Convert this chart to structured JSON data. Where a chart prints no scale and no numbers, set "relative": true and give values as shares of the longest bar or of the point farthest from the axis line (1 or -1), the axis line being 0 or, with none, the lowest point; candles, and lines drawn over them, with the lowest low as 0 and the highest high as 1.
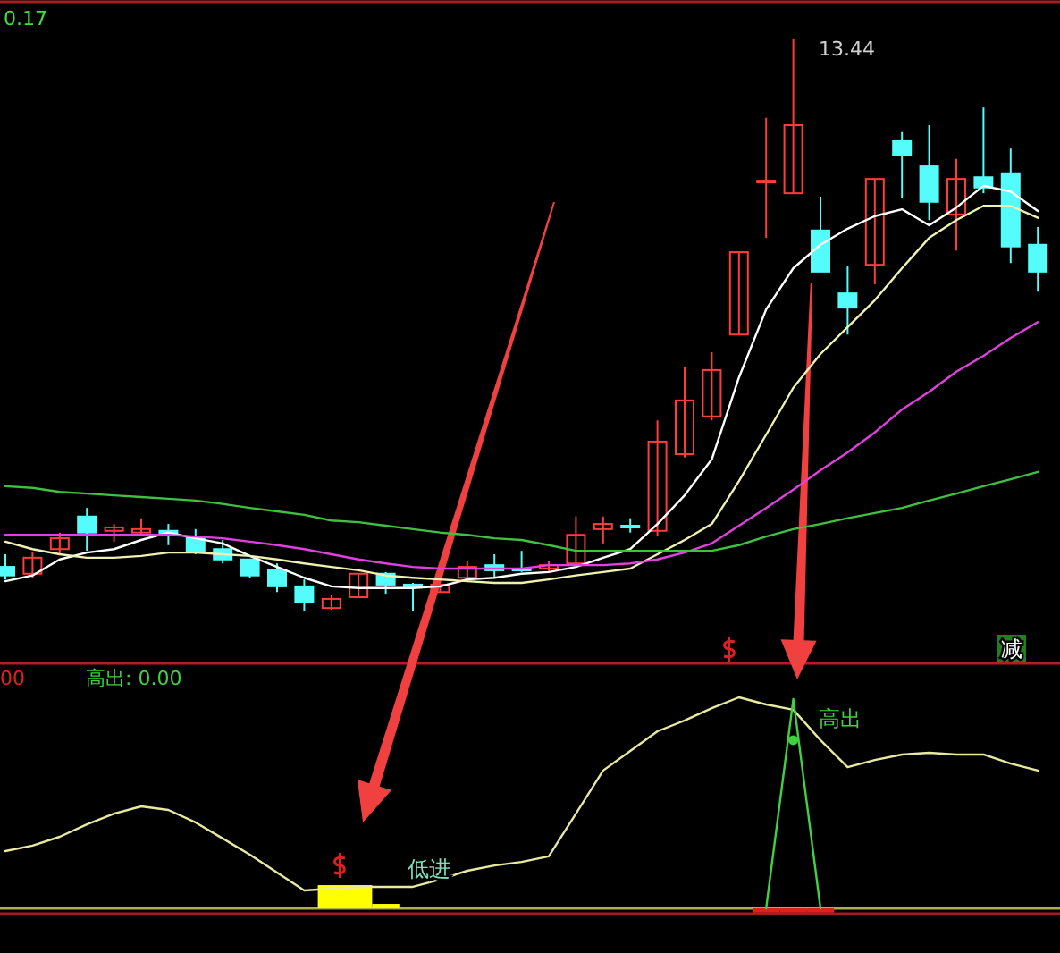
{
  "chart_data": [
    {
      "type": "candlestick",
      "relative": true,
      "categories": [
        null,
        null,
        null,
        null,
        null,
        null,
        null,
        null,
        null,
        null,
        null,
        null,
        null,
        null,
        null,
        null,
        null,
        null,
        null,
        null,
        null,
        null,
        null,
        null,
        null,
        null,
        null,
        null,
        null,
        null,
        null,
        null,
        null,
        null,
        null,
        null,
        null,
        null,
        null
      ],
      "ohlc": [
        [
          0.078,
          0.1,
          0.056,
          0.063
        ],
        [
          0.066,
          0.103,
          0.059,
          0.094
        ],
        [
          0.109,
          0.138,
          0.1,
          0.128
        ],
        [
          0.166,
          0.181,
          0.106,
          0.138
        ],
        [
          0.141,
          0.153,
          0.122,
          0.147
        ],
        [
          0.138,
          0.163,
          0.134,
          0.144
        ],
        [
          0.141,
          0.153,
          0.116,
          0.134
        ],
        [
          0.131,
          0.144,
          0.1,
          0.106
        ],
        [
          0.109,
          0.125,
          0.084,
          0.091
        ],
        [
          0.091,
          0.091,
          0.059,
          0.063
        ],
        [
          0.072,
          0.084,
          0.034,
          0.044
        ],
        [
          0.044,
          0.056,
          0,
          0.016
        ],
        [
          0.006,
          0.028,
          0.003,
          0.022
        ],
        [
          0.025,
          0.066,
          0.025,
          0.066
        ],
        [
          0.066,
          0.069,
          0.031,
          0.047
        ],
        [
          0.047,
          0.05,
          0,
          0.044
        ],
        [
          0.034,
          0.047,
          0.034,
          0.047
        ],
        [
          0.059,
          0.088,
          0.059,
          0.078
        ],
        [
          0.081,
          0.1,
          0.059,
          0.072
        ],
        [
          0.075,
          0.106,
          0.069,
          0.072
        ],
        [
          0.075,
          0.088,
          0.069,
          0.081
        ],
        [
          0.084,
          0.166,
          0.078,
          0.134
        ],
        [
          0.144,
          0.166,
          0.119,
          0.153
        ],
        [
          0.15,
          0.163,
          0.138,
          0.147
        ],
        [
          0.141,
          0.334,
          0.131,
          0.297
        ],
        [
          0.275,
          0.428,
          0.269,
          0.369
        ],
        [
          0.341,
          0.453,
          0.334,
          0.422
        ],
        [
          0.484,
          0.628,
          0.484,
          0.628
        ],
        [
          0.75,
          0.863,
          0.653,
          0.753
        ],
        [
          0.731,
          1,
          0.731,
          0.85
        ],
        [
          0.666,
          0.725,
          0.594,
          0.594
        ],
        [
          0.556,
          0.603,
          0.484,
          0.531
        ],
        [
          0.606,
          0.756,
          0.572,
          0.756
        ],
        [
          0.822,
          0.838,
          0.722,
          0.797
        ],
        [
          0.778,
          0.85,
          0.684,
          0.716
        ],
        [
          0.694,
          0.791,
          0.631,
          0.756
        ],
        [
          0.759,
          0.881,
          0.731,
          0.741
        ],
        [
          0.766,
          0.809,
          0.609,
          0.638
        ],
        [
          0.641,
          0.672,
          0.559,
          0.594
        ]
      ],
      "colors": [
        "#54fcfc",
        "#ff3c3c",
        "#ff3c3c",
        "#54fcfc",
        "#ff3c3c",
        "#ff3c3c",
        "#54fcfc",
        "#54fcfc",
        "#54fcfc",
        "#54fcfc",
        "#54fcfc",
        "#54fcfc",
        "#ff3c3c",
        "#ff3c3c",
        "#54fcfc",
        "#54fcfc",
        "#ff3c3c",
        "#ff3c3c",
        "#54fcfc",
        "#54fcfc",
        "#ff3c3c",
        "#ff3c3c",
        "#ff3c3c",
        "#54fcfc",
        "#ff3c3c",
        "#ff3c3c",
        "#ff3c3c",
        "#ff3c3c",
        "#ff3c3c",
        "#ff3c3c",
        "#54fcfc",
        "#54fcfc",
        "#ff3c3c",
        "#54fcfc",
        "#54fcfc",
        "#ff3c3c",
        "#54fcfc",
        "#54fcfc",
        "#54fcfc"
      ],
      "series": [
        {
          "type": "line",
          "color": "#ffffff",
          "values": [
            0.053,
            0.063,
            0.091,
            0.103,
            0.109,
            0.125,
            0.138,
            0.128,
            0.119,
            0.097,
            0.078,
            0.059,
            0.044,
            0.041,
            0.041,
            0.041,
            0.044,
            0.056,
            0.059,
            0.066,
            0.069,
            0.078,
            0.094,
            0.109,
            0.153,
            0.203,
            0.266,
            0.409,
            0.528,
            0.6,
            0.641,
            0.669,
            0.691,
            0.703,
            0.675,
            0.706,
            0.744,
            0.734,
            0.7
          ]
        },
        {
          "type": "line",
          "color": "#f0f0b0",
          "values": [
            0.122,
            0.109,
            0.1,
            0.094,
            0.094,
            0.097,
            0.103,
            0.103,
            0.1,
            0.097,
            0.091,
            0.084,
            0.078,
            0.072,
            0.063,
            0.059,
            0.056,
            0.053,
            0.05,
            0.05,
            0.056,
            0.063,
            0.069,
            0.075,
            0.1,
            0.125,
            0.153,
            0.228,
            0.309,
            0.391,
            0.45,
            0.497,
            0.544,
            0.6,
            0.653,
            0.684,
            0.709,
            0.709,
            0.688
          ]
        },
        {
          "type": "line",
          "color": "#e040e0",
          "values": [
            0.134,
            0.134,
            0.134,
            0.134,
            0.134,
            0.134,
            0.134,
            0.131,
            0.128,
            0.122,
            0.116,
            0.109,
            0.1,
            0.091,
            0.084,
            0.078,
            0.075,
            0.075,
            0.075,
            0.075,
            0.081,
            0.081,
            0.081,
            0.084,
            0.091,
            0.103,
            0.119,
            0.15,
            0.181,
            0.213,
            0.247,
            0.278,
            0.313,
            0.353,
            0.384,
            0.419,
            0.447,
            0.478,
            0.506
          ]
        },
        {
          "type": "line",
          "color": "#40c040",
          "values": [
            0.219,
            0.216,
            0.209,
            0.206,
            0.203,
            0.2,
            0.197,
            0.194,
            0.188,
            0.181,
            0.175,
            0.169,
            0.159,
            0.156,
            0.15,
            0.144,
            0.138,
            0.134,
            0.128,
            0.125,
            0.116,
            0.106,
            0.106,
            0.106,
            0.106,
            0.106,
            0.106,
            0.116,
            0.131,
            0.144,
            0.153,
            0.163,
            0.172,
            0.181,
            0.194,
            0.206,
            0.219,
            0.231,
            0.244
          ]
        }
      ],
      "annotations": [
        "0.17",
        "13.44",
        "减"
      ]
    },
    {
      "type": "line",
      "relative": true,
      "categories": [
        null,
        null,
        null,
        null,
        null,
        null,
        null,
        null,
        null,
        null,
        null,
        null,
        null,
        null,
        null,
        null,
        null,
        null,
        null,
        null,
        null,
        null,
        null,
        null,
        null,
        null,
        null,
        null,
        null,
        null,
        null,
        null,
        null,
        null,
        null,
        null,
        null,
        null,
        null
      ],
      "series": [
        {
          "type": "line",
          "color": "#e8e8a0",
          "values": [
            0.271,
            0.297,
            0.339,
            0.398,
            0.449,
            0.483,
            0.466,
            0.407,
            0.331,
            0.254,
            0.169,
            0.085,
            0.093,
            0.102,
            0.102,
            0.102,
            0.136,
            0.178,
            0.203,
            0.22,
            0.246,
            0.449,
            0.653,
            0.746,
            0.839,
            0.89,
            0.949,
            1,
            0.966,
            0.941,
            0.797,
            0.669,
            0.703,
            0.729,
            0.737,
            0.729,
            0.729,
            0.686,
            0.653
          ]
        },
        {
          "type": "line",
          "color": "#40d040",
          "values": [
            null,
            null,
            null,
            null,
            null,
            null,
            null,
            null,
            null,
            null,
            null,
            null,
            null,
            null,
            null,
            null,
            null,
            null,
            null,
            null,
            null,
            null,
            null,
            null,
            null,
            null,
            null,
            null,
            0,
            0.992,
            0,
            null,
            null,
            null,
            null,
            null,
            null,
            null,
            null
          ]
        },
        {
          "type": "scatter",
          "color": "#40d040",
          "marker": "circle",
          "values": [
            null,
            null,
            null,
            null,
            null,
            null,
            null,
            null,
            null,
            null,
            null,
            null,
            null,
            null,
            null,
            null,
            null,
            null,
            null,
            null,
            null,
            null,
            null,
            null,
            null,
            null,
            null,
            null,
            null,
            0.797,
            null,
            null,
            null,
            null,
            null,
            null,
            null,
            null,
            null
          ]
        },
        {
          "type": "bar",
          "color": "#ffff00",
          "values": [
            null,
            null,
            null,
            null,
            null,
            null,
            null,
            null,
            null,
            null,
            null,
            null,
            0.11,
            0.11,
            0.021,
            null,
            null,
            null,
            null,
            null,
            null,
            null,
            null,
            null,
            null,
            null,
            null,
            null,
            null,
            null,
            null,
            null,
            null,
            null,
            null,
            null,
            null,
            null,
            null
          ]
        },
        {
          "type": "bar",
          "color": "#e02020",
          "values": [
            null,
            null,
            null,
            null,
            null,
            null,
            null,
            null,
            null,
            null,
            null,
            null,
            null,
            null,
            null,
            null,
            null,
            null,
            null,
            null,
            null,
            null,
            null,
            null,
            null,
            null,
            null,
            null,
            -0.02,
            -0.02,
            -0.02,
            null,
            null,
            null,
            null,
            null,
            null,
            null,
            null
          ]
        }
      ],
      "annotations": [
        "00",
        "高出: 0.00",
        "高出",
        "低进"
      ]
    }
  ]
}
